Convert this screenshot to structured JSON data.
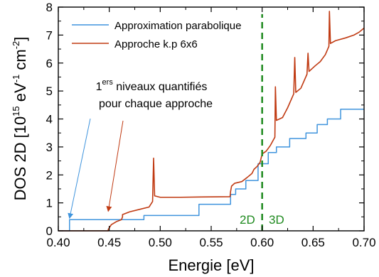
{
  "chart_data": {
    "type": "line",
    "xlabel": "Energie [eV]",
    "ylabel": {
      "prefix": "DOS 2D [10",
      "exp1": "15",
      "mid1": " eV",
      "exp2": "-1",
      "mid2": " cm",
      "exp3": "-2",
      "suffix": "]"
    },
    "xlim": [
      0.4,
      0.7
    ],
    "ylim": [
      0,
      8
    ],
    "xticks": [
      "0.40",
      "0.45",
      "0.50",
      "0.55",
      "0.60",
      "0.65",
      "0.70"
    ],
    "yticks": [
      "0",
      "1",
      "2",
      "3",
      "4",
      "5",
      "6",
      "7",
      "8"
    ],
    "grid": false,
    "legend_position": "top-left",
    "colors": {
      "parabolic": "#3f94dd",
      "kp": "#c03a12",
      "boundary": "#1f8a1f"
    },
    "series": [
      {
        "name": "Approximation parabolique",
        "style": "step",
        "points": [
          [
            0.4,
            0
          ],
          [
            0.411,
            0
          ],
          [
            0.411,
            0.4
          ],
          [
            0.484,
            0.4
          ],
          [
            0.484,
            0.55
          ],
          [
            0.538,
            0.55
          ],
          [
            0.538,
            0.95
          ],
          [
            0.569,
            0.95
          ],
          [
            0.569,
            1.3
          ],
          [
            0.574,
            1.3
          ],
          [
            0.574,
            1.5
          ],
          [
            0.584,
            1.5
          ],
          [
            0.584,
            1.8
          ],
          [
            0.596,
            1.8
          ],
          [
            0.596,
            2.4
          ],
          [
            0.606,
            2.4
          ],
          [
            0.606,
            2.8
          ],
          [
            0.614,
            2.8
          ],
          [
            0.614,
            3.0
          ],
          [
            0.627,
            3.0
          ],
          [
            0.627,
            3.3
          ],
          [
            0.643,
            3.3
          ],
          [
            0.643,
            3.5
          ],
          [
            0.654,
            3.5
          ],
          [
            0.654,
            3.8
          ],
          [
            0.664,
            3.8
          ],
          [
            0.664,
            4.0
          ],
          [
            0.677,
            4.0
          ],
          [
            0.677,
            4.35
          ],
          [
            0.7,
            4.35
          ]
        ]
      },
      {
        "name": "Approche k.p 6x6",
        "style": "line",
        "points": [
          [
            0.4,
            0
          ],
          [
            0.449,
            0
          ],
          [
            0.449,
            0.05
          ],
          [
            0.452,
            0.22
          ],
          [
            0.457,
            0.33
          ],
          [
            0.462,
            0.4
          ],
          [
            0.463,
            0.5
          ],
          [
            0.463,
            0.58
          ],
          [
            0.47,
            0.68
          ],
          [
            0.48,
            0.77
          ],
          [
            0.489,
            0.85
          ],
          [
            0.4925,
            1.05
          ],
          [
            0.4935,
            2.6
          ],
          [
            0.4945,
            1.25
          ],
          [
            0.5,
            1.2
          ],
          [
            0.52,
            1.2
          ],
          [
            0.54,
            1.21
          ],
          [
            0.5685,
            1.22
          ],
          [
            0.569,
            1.4
          ],
          [
            0.57,
            1.6
          ],
          [
            0.573,
            1.7
          ],
          [
            0.58,
            1.76
          ],
          [
            0.585,
            1.9
          ],
          [
            0.59,
            2.05
          ],
          [
            0.592,
            2.2
          ],
          [
            0.595,
            2.3
          ],
          [
            0.598,
            2.45
          ],
          [
            0.6,
            2.75
          ],
          [
            0.604,
            2.85
          ],
          [
            0.608,
            3.05
          ],
          [
            0.6125,
            3.35
          ],
          [
            0.613,
            5.15
          ],
          [
            0.614,
            3.95
          ],
          [
            0.62,
            4.05
          ],
          [
            0.625,
            4.4
          ],
          [
            0.631,
            4.9
          ],
          [
            0.632,
            6.2
          ],
          [
            0.633,
            4.95
          ],
          [
            0.638,
            5.1
          ],
          [
            0.644,
            5.6
          ],
          [
            0.645,
            6.35
          ],
          [
            0.646,
            5.7
          ],
          [
            0.652,
            5.9
          ],
          [
            0.657,
            6.05
          ],
          [
            0.662,
            6.3
          ],
          [
            0.6655,
            6.6
          ],
          [
            0.666,
            7.85
          ],
          [
            0.667,
            6.7
          ],
          [
            0.672,
            6.8
          ],
          [
            0.682,
            6.9
          ],
          [
            0.69,
            7.0
          ],
          [
            0.695,
            7.1
          ],
          [
            0.7,
            7.25
          ]
        ]
      }
    ],
    "boundary": {
      "x": 0.6,
      "ymax": 7.75,
      "left_label": "2D",
      "right_label": "3D"
    },
    "annotation": {
      "line1_sup_prefix": "1",
      "line1_sup": "ers",
      "line1_rest": " niveaux quantifiés",
      "line2": "pour chaque approche",
      "arrow_targets": [
        {
          "series": "Approximation parabolique",
          "x": 0.411,
          "y": 0.45
        },
        {
          "series": "Approche k.p 6x6",
          "x": 0.449,
          "y": 0.7
        }
      ]
    }
  }
}
